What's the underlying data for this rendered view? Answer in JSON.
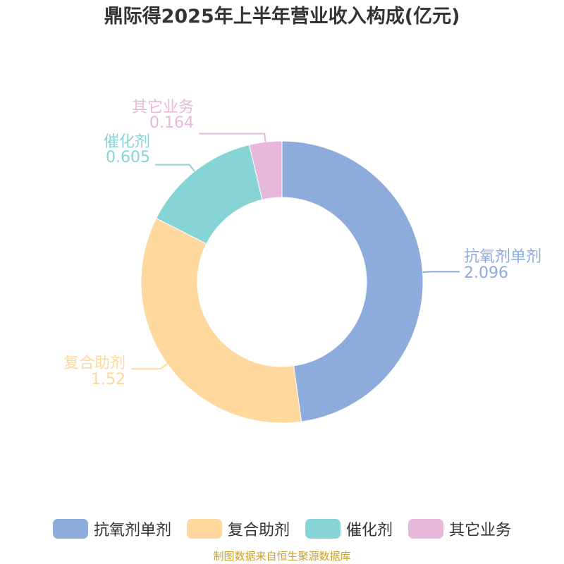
{
  "chart_data": {
    "type": "pie",
    "variant": "donut",
    "title": "鼎际得2025年上半年营业收入构成(亿元)",
    "categories": [
      "抗氧剂单剂",
      "复合助剂",
      "催化剂",
      "其它业务"
    ],
    "value_labels": [
      "2.096",
      "1.52",
      "0.605",
      "0.164"
    ],
    "values": [
      2.096,
      1.52,
      0.605,
      0.164
    ],
    "colors": [
      "#8eacdb",
      "#fed89d",
      "#86d4d6",
      "#e7b8d9"
    ],
    "legend_position": "bottom"
  },
  "source_text": "制图数据来自恒生聚源数据库"
}
